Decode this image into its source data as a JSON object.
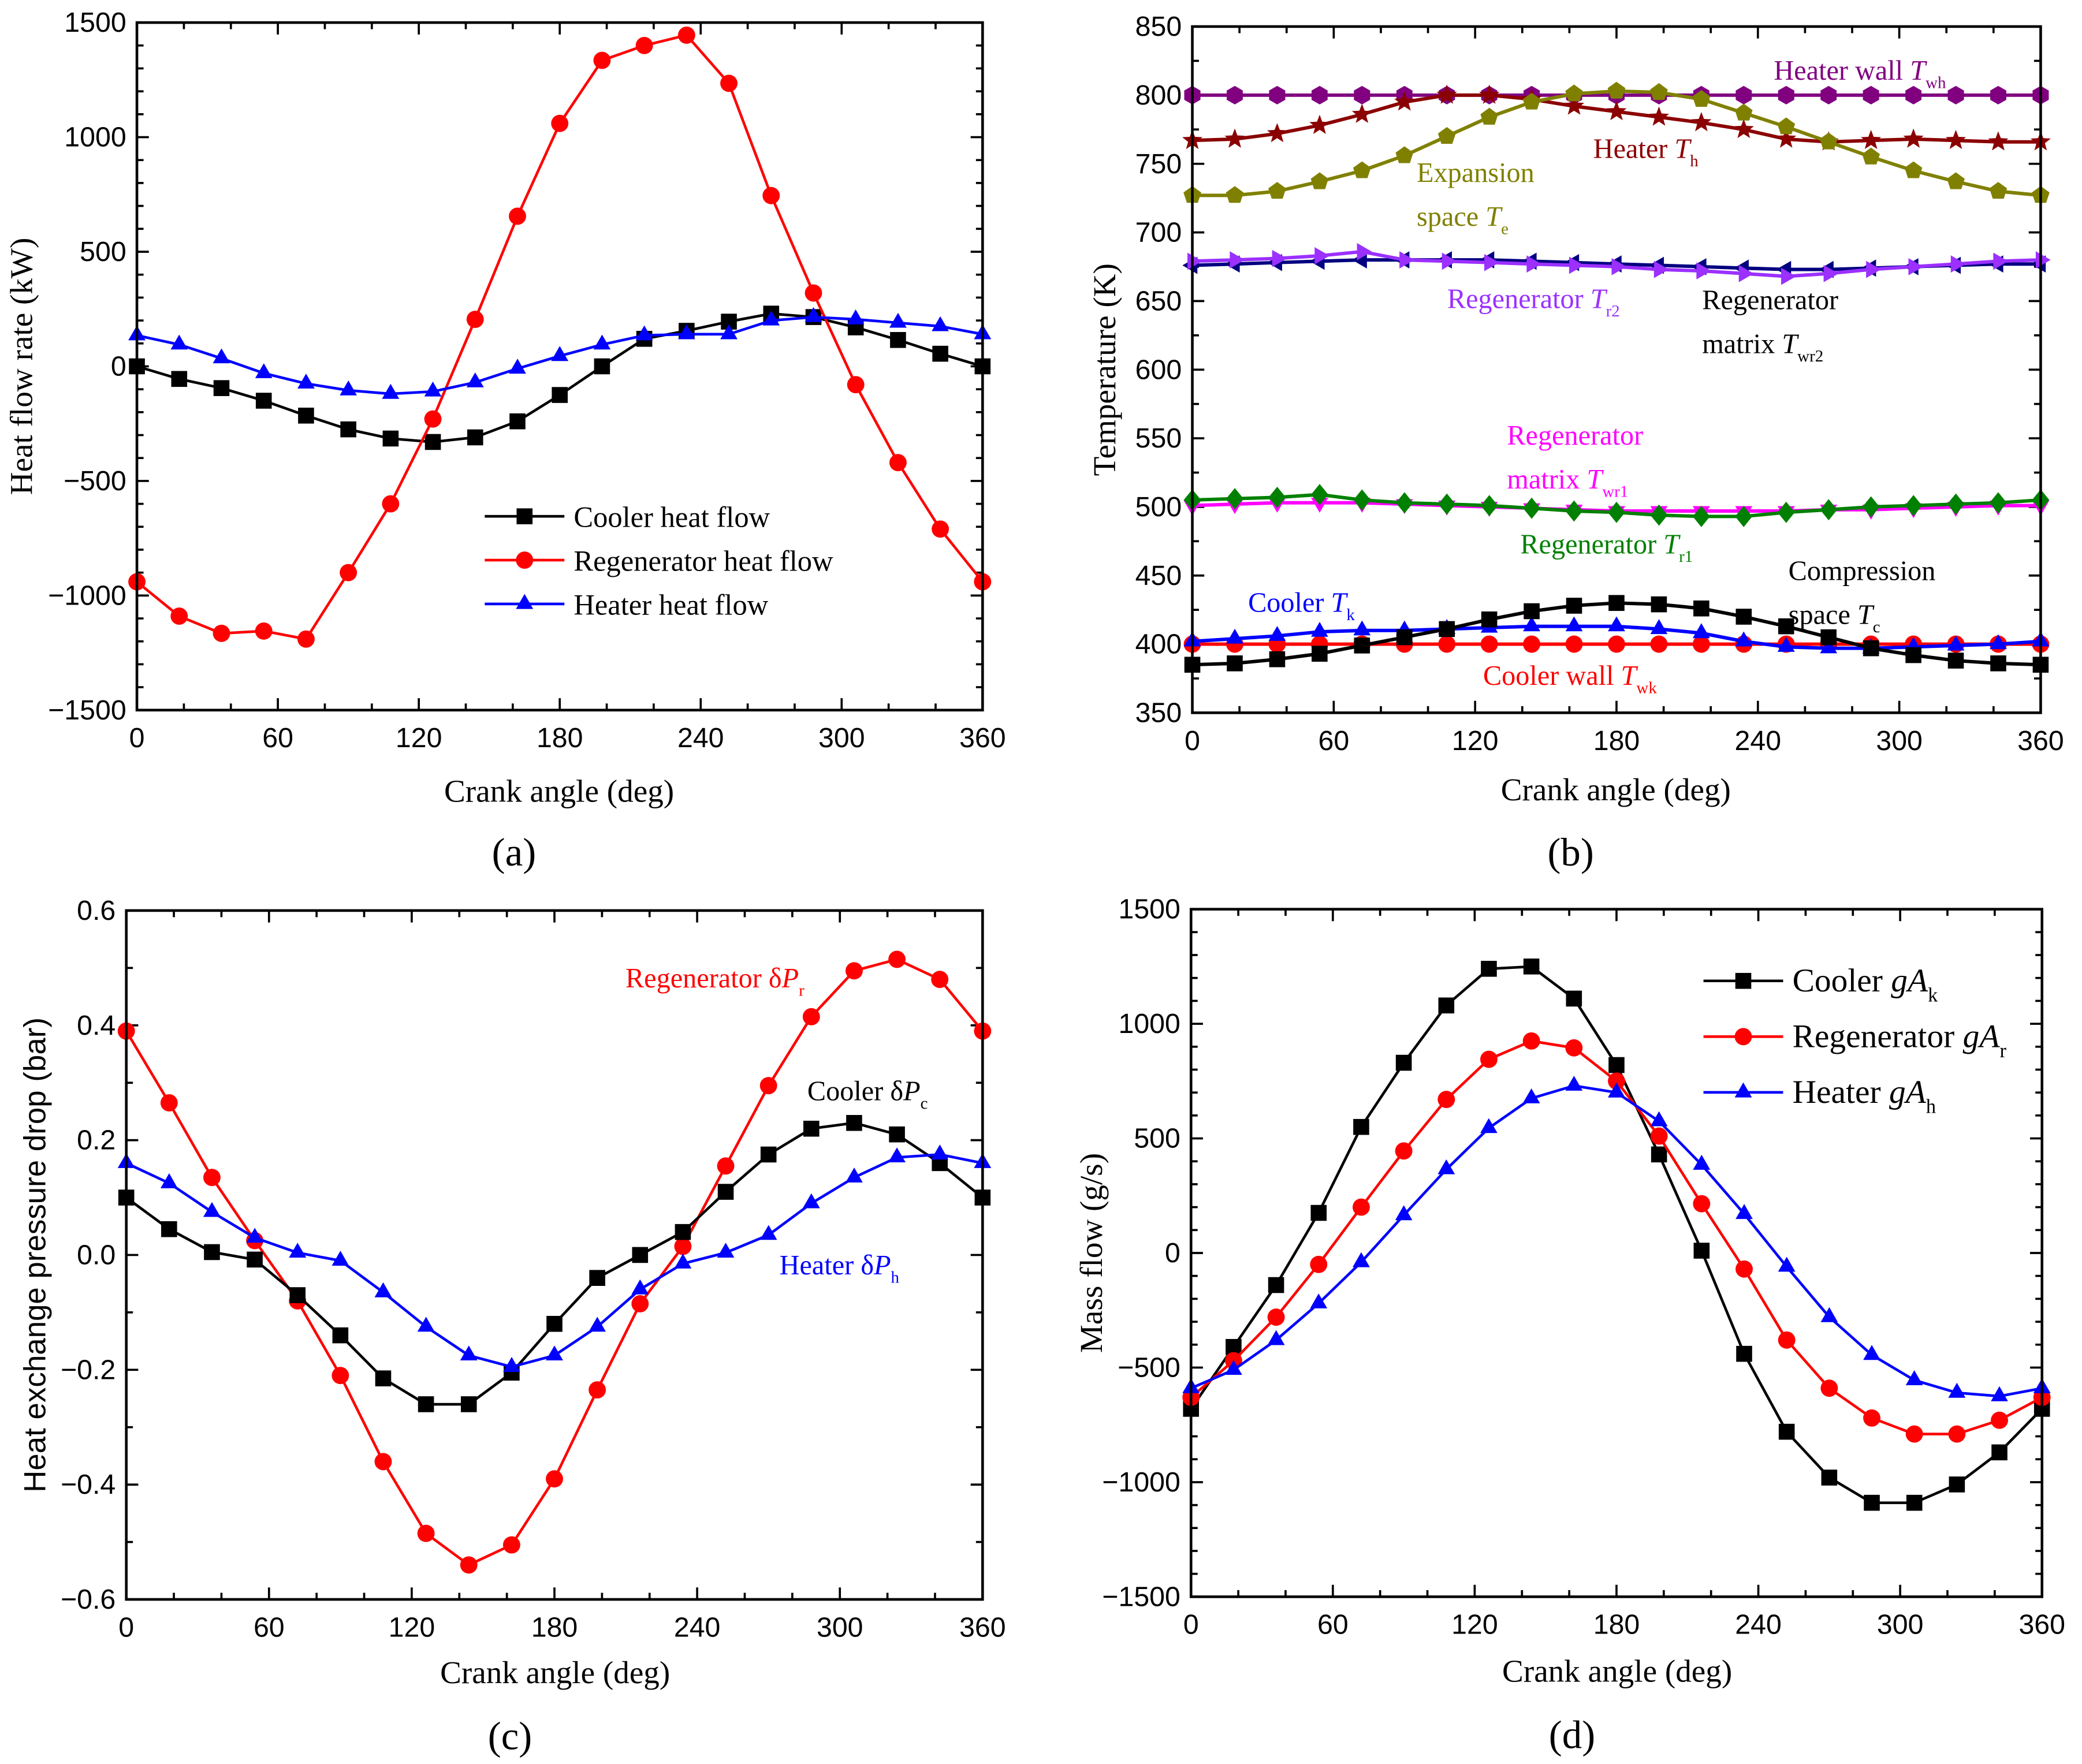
{
  "chart_data": [
    {
      "panel_label": "(a)",
      "type": "line",
      "xlabel": "Crank angle (deg)",
      "ylabel": "Heat flow rate (kW)",
      "xlim": [
        0,
        360
      ],
      "ylim": [
        -1500,
        1500
      ],
      "xticks": [
        0,
        60,
        120,
        180,
        240,
        300,
        360
      ],
      "xtick_labels": [
        "0",
        "60",
        "120",
        "180",
        "240",
        "300",
        "360"
      ],
      "yticks": [
        -1500,
        -1000,
        -500,
        0,
        500,
        1000,
        1500
      ],
      "ytick_labels": [
        "−1500",
        "−1000",
        "−500",
        "0",
        "500",
        "1000",
        "1500"
      ],
      "x": [
        0,
        18,
        36,
        54,
        72,
        90,
        108,
        126,
        144,
        162,
        180,
        198,
        216,
        234,
        252,
        270,
        288,
        306,
        324,
        342,
        360
      ],
      "legend_placement": "lower-center",
      "series": [
        {
          "name": "Cooler heat flow",
          "color": "#000000",
          "marker": "square",
          "values": [
            0,
            -55,
            -95,
            -150,
            -215,
            -275,
            -315,
            -330,
            -310,
            -240,
            -125,
            0,
            120,
            155,
            195,
            230,
            215,
            170,
            115,
            55,
            0
          ]
        },
        {
          "name": "Regenerator heat flow",
          "color": "#ff0000",
          "marker": "circle",
          "values": [
            -940,
            -1090,
            -1165,
            -1155,
            -1190,
            -900,
            -600,
            -230,
            205,
            655,
            1060,
            1335,
            1400,
            1445,
            1235,
            745,
            320,
            -80,
            -420,
            -710,
            -940
          ]
        },
        {
          "name": "Heater heat flow",
          "color": "#0000ff",
          "marker": "triangle",
          "values": [
            135,
            95,
            35,
            -30,
            -75,
            -105,
            -120,
            -110,
            -70,
            -10,
            45,
            95,
            135,
            140,
            140,
            200,
            215,
            205,
            190,
            175,
            140
          ]
        }
      ]
    },
    {
      "panel_label": "(b)",
      "type": "line",
      "xlabel": "Crank angle (deg)",
      "ylabel": "Temperature (K)",
      "xlim": [
        0,
        360
      ],
      "ylim": [
        350,
        850
      ],
      "xticks": [
        0,
        60,
        120,
        180,
        240,
        300,
        360
      ],
      "xtick_labels": [
        "0",
        "60",
        "120",
        "180",
        "240",
        "300",
        "360"
      ],
      "yticks": [
        350,
        400,
        450,
        500,
        550,
        600,
        650,
        700,
        750,
        800,
        850
      ],
      "ytick_labels": [
        "350",
        "400",
        "450",
        "500",
        "550",
        "600",
        "650",
        "700",
        "750",
        "800",
        "850"
      ],
      "x": [
        0,
        18,
        36,
        54,
        72,
        90,
        108,
        126,
        144,
        162,
        180,
        198,
        216,
        234,
        252,
        270,
        288,
        306,
        324,
        342,
        360
      ],
      "series": [
        {
          "name": "Heater wall T_wh",
          "color": "#800080",
          "marker": "hexagon",
          "values": [
            800,
            800,
            800,
            800,
            800,
            800,
            800,
            800,
            800,
            800,
            800,
            800,
            800,
            800,
            800,
            800,
            800,
            800,
            800,
            800,
            800
          ]
        },
        {
          "name": "Heater T_h",
          "color": "#8b0000",
          "marker": "star",
          "values": [
            767,
            768,
            772,
            778,
            786,
            795,
            800,
            800,
            797,
            792,
            788,
            784,
            780,
            775,
            768,
            766,
            767,
            768,
            767,
            766,
            766
          ]
        },
        {
          "name": "Expansion space T_e",
          "color": "#808000",
          "marker": "pentagon",
          "values": [
            727,
            727,
            730,
            737,
            745,
            756,
            770,
            784,
            795,
            801,
            803,
            802,
            797,
            787,
            777,
            766,
            755,
            745,
            737,
            730,
            727
          ]
        },
        {
          "name": "Regenerator matrix T_wr2",
          "color": "#000080",
          "marker": "tri-left",
          "values": [
            676,
            677,
            678,
            679,
            680,
            680,
            680,
            680,
            679,
            678,
            677,
            676,
            675,
            674,
            673,
            673,
            674,
            675,
            676,
            677,
            677
          ]
        },
        {
          "name": "Regenerator T_r2",
          "color": "#9b30ff",
          "marker": "tri-right",
          "values": [
            679,
            680,
            681,
            683,
            686,
            680,
            679,
            678,
            677,
            676,
            675,
            673,
            672,
            670,
            668,
            670,
            673,
            675,
            677,
            679,
            680
          ]
        },
        {
          "name": "Regenerator matrix T_wr1",
          "color": "#ff00ff",
          "marker": "tri-down",
          "values": [
            501,
            502,
            503,
            503,
            503,
            502,
            501,
            500,
            499,
            498,
            497,
            497,
            497,
            497,
            497,
            498,
            498,
            499,
            500,
            501,
            501
          ]
        },
        {
          "name": "Regenerator T_r1",
          "color": "#008000",
          "marker": "diamond",
          "values": [
            505,
            506,
            507,
            509,
            505,
            503,
            502,
            501,
            499,
            497,
            496,
            494,
            493,
            493,
            496,
            498,
            500,
            501,
            502,
            503,
            505
          ]
        },
        {
          "name": "Cooler wall T_wk",
          "color": "#ff0000",
          "marker": "circle",
          "values": [
            400,
            400,
            400,
            400,
            400,
            400,
            400,
            400,
            400,
            400,
            400,
            400,
            400,
            400,
            400,
            400,
            400,
            400,
            400,
            400,
            400
          ]
        },
        {
          "name": "Cooler T_k",
          "color": "#0000ff",
          "marker": "triangle",
          "values": [
            402,
            404,
            406,
            409,
            410,
            410,
            411,
            412,
            413,
            413,
            413,
            411,
            408,
            402,
            398,
            397,
            397,
            398,
            399,
            400,
            402
          ]
        },
        {
          "name": "Compression space T_c",
          "color": "#000000",
          "marker": "square",
          "values": [
            385,
            386,
            389,
            393,
            399,
            405,
            411,
            418,
            424,
            428,
            430,
            429,
            426,
            420,
            413,
            405,
            397,
            392,
            388,
            386,
            385
          ]
        }
      ],
      "annotations": [
        {
          "lines": [
            {
              "text": "Heater wall ",
              "sym": "T",
              "sub": "wh"
            }
          ],
          "color": "#800080"
        },
        {
          "lines": [
            {
              "text": "Heater ",
              "sym": "T",
              "sub": "h"
            }
          ],
          "color": "#8b0000"
        },
        {
          "lines": [
            {
              "text": "Expansion"
            },
            {
              "text": "space ",
              "sym": "T",
              "sub": "e"
            }
          ],
          "color": "#808000"
        },
        {
          "lines": [
            {
              "text": "Regenerator ",
              "sym": "T",
              "sub": "r2"
            }
          ],
          "color": "#9b30ff"
        },
        {
          "lines": [
            {
              "text": "Regenerator"
            },
            {
              "text": "matrix ",
              "sym": "T",
              "sub": "wr2"
            }
          ],
          "color": "#000000"
        },
        {
          "lines": [
            {
              "text": "Regenerator"
            },
            {
              "text": "matrix ",
              "sym": "T",
              "sub": "wr1"
            }
          ],
          "color": "#ff00ff"
        },
        {
          "lines": [
            {
              "text": "Regenerator ",
              "sym": "T",
              "sub": "r1"
            }
          ],
          "color": "#008000"
        },
        {
          "lines": [
            {
              "text": "Compression"
            },
            {
              "text": "space ",
              "sym": "T",
              "sub": "c"
            }
          ],
          "color": "#000000"
        },
        {
          "lines": [
            {
              "text": "Cooler ",
              "sym": "T",
              "sub": "k"
            }
          ],
          "color": "#0000ff"
        },
        {
          "lines": [
            {
              "text": "Cooler wall ",
              "sym": "T",
              "sub": "wk"
            }
          ],
          "color": "#ff0000"
        }
      ]
    },
    {
      "panel_label": "(c)",
      "type": "line",
      "xlabel": "Crank angle (deg)",
      "ylabel": "Heat exchange pressure drop (bar)",
      "xlim": [
        0,
        360
      ],
      "ylim": [
        -0.6,
        0.6
      ],
      "xticks": [
        0,
        60,
        120,
        180,
        240,
        300,
        360
      ],
      "xtick_labels": [
        "0",
        "60",
        "120",
        "180",
        "240",
        "300",
        "360"
      ],
      "yticks": [
        -0.6,
        -0.4,
        -0.2,
        0,
        0.2,
        0.4,
        0.6
      ],
      "ytick_labels": [
        "−0.6",
        "−0.4",
        "−0.2",
        "0.0",
        "0.2",
        "0.4",
        "0.6"
      ],
      "x": [
        0,
        18,
        36,
        54,
        72,
        90,
        108,
        126,
        144,
        162,
        180,
        198,
        216,
        234,
        252,
        270,
        288,
        306,
        324,
        342,
        360
      ],
      "series": [
        {
          "name": "Regenerator δP_r",
          "color": "#ff0000",
          "marker": "circle",
          "values": [
            0.39,
            0.265,
            0.135,
            0.025,
            -0.08,
            -0.21,
            -0.36,
            -0.485,
            -0.54,
            -0.505,
            -0.39,
            -0.235,
            -0.085,
            0.015,
            0.155,
            0.295,
            0.415,
            0.495,
            0.515,
            0.48,
            0.39
          ]
        },
        {
          "name": "Cooler δP_c",
          "color": "#000000",
          "marker": "square",
          "values": [
            0.1,
            0.045,
            0.005,
            -0.008,
            -0.07,
            -0.14,
            -0.215,
            -0.26,
            -0.26,
            -0.205,
            -0.12,
            -0.04,
            0.0,
            0.04,
            0.11,
            0.175,
            0.22,
            0.23,
            0.21,
            0.16,
            0.1
          ]
        },
        {
          "name": "Heater δP_h",
          "color": "#0000ff",
          "marker": "triangle",
          "values": [
            0.16,
            0.125,
            0.075,
            0.03,
            0.004,
            -0.01,
            -0.065,
            -0.125,
            -0.175,
            -0.195,
            -0.175,
            -0.125,
            -0.06,
            -0.015,
            0.004,
            0.035,
            0.09,
            0.135,
            0.17,
            0.175,
            0.16
          ]
        }
      ],
      "annotations": [
        {
          "lines": [
            {
              "text": "Regenerator δ",
              "sym": "P",
              "sub": "r"
            }
          ],
          "color": "#ff0000"
        },
        {
          "lines": [
            {
              "text": "Cooler δ",
              "sym": "P",
              "sub": "c"
            }
          ],
          "color": "#000000"
        },
        {
          "lines": [
            {
              "text": "Heater δ",
              "sym": "P",
              "sub": "h"
            }
          ],
          "color": "#0000ff"
        }
      ]
    },
    {
      "panel_label": "(d)",
      "type": "line",
      "xlabel": "Crank angle (deg)",
      "ylabel": "Mass flow (g/s)",
      "xlim": [
        0,
        360
      ],
      "ylim": [
        -1500,
        1500
      ],
      "xticks": [
        0,
        60,
        120,
        180,
        240,
        300,
        360
      ],
      "xtick_labels": [
        "0",
        "60",
        "120",
        "180",
        "240",
        "300",
        "360"
      ],
      "yticks": [
        -1500,
        -1000,
        -500,
        0,
        500,
        1000,
        1500
      ],
      "ytick_labels": [
        "−1500",
        "−1000",
        "−500",
        "0",
        "500",
        "1000",
        "1500"
      ],
      "x": [
        0,
        18,
        36,
        54,
        72,
        90,
        108,
        126,
        144,
        162,
        180,
        198,
        216,
        234,
        252,
        270,
        288,
        306,
        324,
        342,
        360
      ],
      "legend_placement": "top-right",
      "series": [
        {
          "name": "Cooler gA_k",
          "label": {
            "text": "Cooler ",
            "sym": "gA",
            "sub": "k"
          },
          "color": "#000000",
          "marker": "square",
          "values": [
            -680,
            -410,
            -140,
            175,
            550,
            830,
            1080,
            1240,
            1250,
            1110,
            820,
            430,
            10,
            -440,
            -780,
            -980,
            -1090,
            -1090,
            -1010,
            -870,
            -680
          ]
        },
        {
          "name": "Regenerator gA_r",
          "label": {
            "text": "Regenerator ",
            "sym": "gA",
            "sub": "r"
          },
          "color": "#ff0000",
          "marker": "circle",
          "values": [
            -630,
            -470,
            -280,
            -50,
            200,
            445,
            670,
            845,
            925,
            895,
            750,
            510,
            215,
            -70,
            -380,
            -590,
            -720,
            -790,
            -790,
            -730,
            -630
          ]
        },
        {
          "name": "Heater gA_h",
          "label": {
            "text": "Heater ",
            "sym": "gA",
            "sub": "h"
          },
          "color": "#0000ff",
          "marker": "triangle",
          "values": [
            -590,
            -510,
            -380,
            -220,
            -40,
            165,
            365,
            545,
            675,
            730,
            700,
            575,
            385,
            170,
            -60,
            -280,
            -445,
            -555,
            -610,
            -625,
            -590
          ]
        }
      ]
    }
  ]
}
